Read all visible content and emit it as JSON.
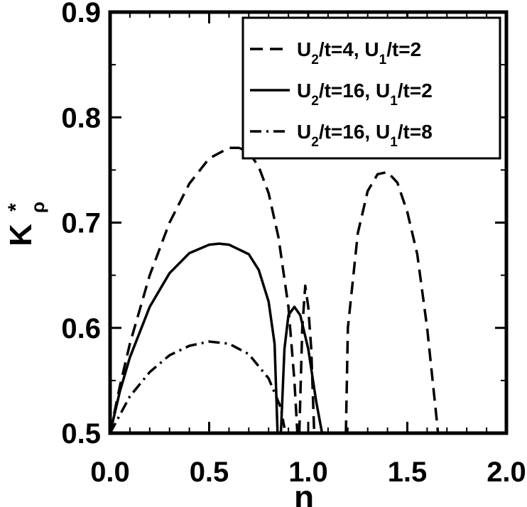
{
  "chart_data": {
    "type": "line",
    "title": "",
    "xlabel": "n",
    "ylabel_main": "K",
    "ylabel_sup": "*",
    "ylabel_sub": "ρ",
    "xlim": [
      0.0,
      2.0
    ],
    "ylim": [
      0.5,
      0.9
    ],
    "xticks": [
      "0.0",
      "0.5",
      "1.0",
      "1.5",
      "2.0"
    ],
    "yticks": [
      "0.5",
      "0.6",
      "0.7",
      "0.8",
      "0.9"
    ],
    "grid": false,
    "legend_position": "top-right",
    "series": [
      {
        "name_parts": [
          "U",
          "2",
          "/t=4, U",
          "1",
          "/t=2"
        ],
        "style": "dashed",
        "segments": [
          [
            [
              0.0,
              0.5
            ],
            [
              0.05,
              0.545
            ],
            [
              0.1,
              0.585
            ],
            [
              0.2,
              0.65
            ],
            [
              0.3,
              0.7
            ],
            [
              0.4,
              0.737
            ],
            [
              0.5,
              0.761
            ],
            [
              0.6,
              0.771
            ],
            [
              0.65,
              0.771
            ],
            [
              0.7,
              0.767
            ],
            [
              0.75,
              0.753
            ],
            [
              0.8,
              0.728
            ],
            [
              0.85,
              0.686
            ],
            [
              0.9,
              0.62
            ],
            [
              0.93,
              0.55
            ],
            [
              0.945,
              0.5
            ]
          ],
          [
            [
              0.955,
              0.5
            ],
            [
              0.97,
              0.6
            ],
            [
              0.985,
              0.64
            ],
            [
              1.0,
              0.62
            ],
            [
              1.015,
              0.58
            ],
            [
              1.03,
              0.5
            ]
          ],
          [
            [
              1.19,
              0.5
            ],
            [
              1.2,
              0.6
            ],
            [
              1.25,
              0.69
            ],
            [
              1.3,
              0.73
            ],
            [
              1.35,
              0.746
            ],
            [
              1.4,
              0.748
            ],
            [
              1.45,
              0.738
            ],
            [
              1.5,
              0.71
            ],
            [
              1.55,
              0.67
            ],
            [
              1.6,
              0.6
            ],
            [
              1.65,
              0.51
            ],
            [
              1.655,
              0.5
            ]
          ]
        ]
      },
      {
        "name_parts": [
          "U",
          "2",
          "/t=16, U",
          "1",
          "/t=2"
        ],
        "style": "solid",
        "segments": [
          [
            [
              0.0,
              0.5
            ],
            [
              0.05,
              0.54
            ],
            [
              0.1,
              0.572
            ],
            [
              0.2,
              0.62
            ],
            [
              0.3,
              0.652
            ],
            [
              0.4,
              0.671
            ],
            [
              0.5,
              0.679
            ],
            [
              0.55,
              0.68
            ],
            [
              0.6,
              0.679
            ],
            [
              0.7,
              0.67
            ],
            [
              0.75,
              0.655
            ],
            [
              0.8,
              0.625
            ],
            [
              0.83,
              0.585
            ],
            [
              0.845,
              0.5
            ]
          ],
          [
            [
              0.862,
              0.5
            ],
            [
              0.88,
              0.58
            ],
            [
              0.9,
              0.612
            ],
            [
              0.93,
              0.62
            ],
            [
              0.96,
              0.612
            ],
            [
              1.0,
              0.58
            ],
            [
              1.04,
              0.53
            ],
            [
              1.07,
              0.5
            ]
          ]
        ]
      },
      {
        "name_parts": [
          "U",
          "2",
          "/t=16, U",
          "1",
          "/t=8"
        ],
        "style": "dashdot",
        "segments": [
          [
            [
              0.0,
              0.5
            ],
            [
              0.1,
              0.535
            ],
            [
              0.2,
              0.558
            ],
            [
              0.3,
              0.574
            ],
            [
              0.4,
              0.583
            ],
            [
              0.5,
              0.587
            ],
            [
              0.6,
              0.585
            ],
            [
              0.7,
              0.575
            ],
            [
              0.8,
              0.552
            ],
            [
              0.86,
              0.525
            ],
            [
              0.88,
              0.505
            ]
          ]
        ]
      }
    ]
  }
}
